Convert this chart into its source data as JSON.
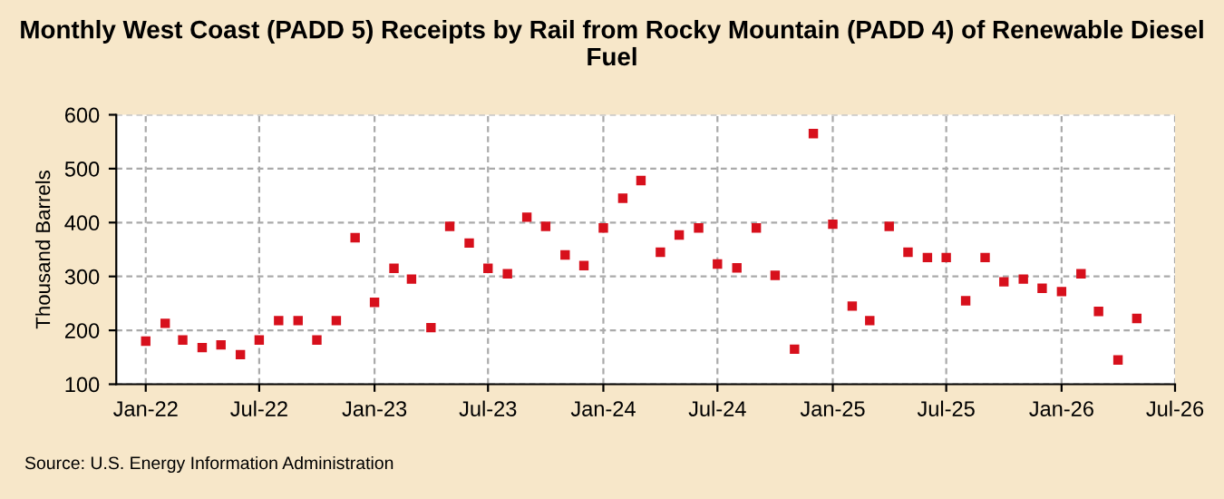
{
  "chart_data": {
    "type": "scatter",
    "title": "Monthly West Coast (PADD 5) Receipts by Rail from Rocky Mountain (PADD 4) of Renewable Diesel Fuel",
    "ylabel": "Thousand Barrels",
    "annotations": [
      "Source: U.S. Energy Information Administration"
    ],
    "x": [
      "2022-01",
      "2022-02",
      "2022-03",
      "2022-04",
      "2022-05",
      "2022-06",
      "2022-07",
      "2022-08",
      "2022-09",
      "2022-10",
      "2022-11",
      "2022-12",
      "2023-01",
      "2023-02",
      "2023-03",
      "2023-04",
      "2023-05",
      "2023-06",
      "2023-07",
      "2023-08",
      "2023-09",
      "2023-10",
      "2023-11",
      "2023-12",
      "2024-01",
      "2024-02",
      "2024-03",
      "2024-04",
      "2024-05",
      "2024-06",
      "2024-07",
      "2024-08",
      "2024-09",
      "2024-10",
      "2024-11",
      "2024-12",
      "2025-01",
      "2025-02",
      "2025-03",
      "2025-04",
      "2025-05",
      "2025-06",
      "2025-07",
      "2025-08",
      "2025-09",
      "2025-10",
      "2025-11",
      "2025-12",
      "2026-01",
      "2026-02",
      "2026-03",
      "2026-04",
      "2026-05"
    ],
    "series": [
      {
        "color": "#d7101c",
        "values": [
          180,
          213,
          182,
          168,
          173,
          155,
          182,
          218,
          218,
          182,
          218,
          372,
          252,
          315,
          295,
          205,
          393,
          362,
          315,
          305,
          410,
          393,
          340,
          320,
          390,
          445,
          478,
          345,
          377,
          390,
          323,
          316,
          390,
          302,
          165,
          565,
          397,
          245,
          218,
          393,
          345,
          335,
          335,
          255,
          335,
          290,
          295,
          278,
          272,
          305,
          235,
          145,
          222
        ]
      }
    ],
    "marker": "square",
    "xlim": [
      "2021-11-15",
      "2026-07-01"
    ],
    "xticks": [
      {
        "value": "2022-01",
        "label": "Jan-22"
      },
      {
        "value": "2022-07",
        "label": "Jul-22"
      },
      {
        "value": "2023-01",
        "label": "Jan-23"
      },
      {
        "value": "2023-07",
        "label": "Jul-23"
      },
      {
        "value": "2024-01",
        "label": "Jan-24"
      },
      {
        "value": "2024-07",
        "label": "Jul-24"
      },
      {
        "value": "2025-01",
        "label": "Jan-25"
      },
      {
        "value": "2025-07",
        "label": "Jul-25"
      },
      {
        "value": "2026-01",
        "label": "Jan-26"
      },
      {
        "value": "2026-07",
        "label": "Jul-26"
      }
    ],
    "ylim": [
      100,
      600
    ],
    "yticks": [
      100,
      200,
      300,
      400,
      500,
      600
    ],
    "grid": true
  }
}
